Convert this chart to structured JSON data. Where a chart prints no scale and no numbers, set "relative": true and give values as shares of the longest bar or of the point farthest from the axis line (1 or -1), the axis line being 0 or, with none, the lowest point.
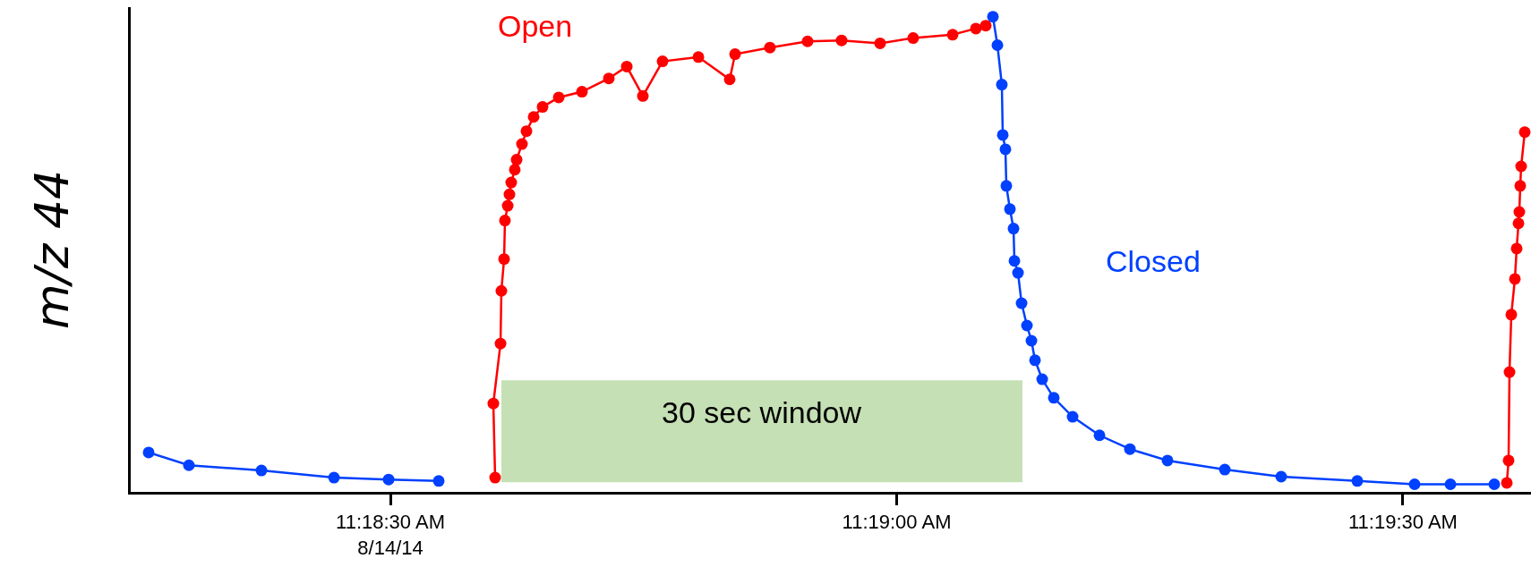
{
  "chart_data": {
    "type": "line",
    "relative": true,
    "ylabel": "m/z 44",
    "marker": "circle",
    "line_style": "solid",
    "legend": false,
    "grid": false,
    "tick_labels": "x",
    "xlim": [
      11.304059,
      11.327108
    ],
    "xticks": [
      {
        "value": 11.308333,
        "label": "11:18:30 AM\n8/14/14"
      },
      {
        "value": 11.316667,
        "label": "11:19:00 AM"
      },
      {
        "value": 11.325,
        "label": "11:19:30 AM"
      }
    ],
    "series": [
      {
        "name": "Closed",
        "color": "#0040ff",
        "x": [
          11.304354,
          11.305017,
          11.306211,
          11.307405,
          11.308304,
          11.309129,
          null,
          11.318251,
          11.318325,
          11.318398,
          11.318413,
          11.318457,
          11.318472,
          11.318531,
          11.31859,
          11.318605,
          11.318664,
          11.318723,
          11.318811,
          11.318885,
          11.318944,
          11.319062,
          11.319253,
          11.319563,
          11.320005,
          11.320506,
          11.321125,
          11.322068,
          11.322996,
          11.324249,
          11.325192,
          11.325782,
          11.326504
        ],
        "values": [
          0.083,
          0.056,
          0.045,
          0.03,
          0.026,
          0.023,
          null,
          1,
          0.94,
          0.857,
          0.751,
          0.721,
          0.644,
          0.595,
          0.554,
          0.486,
          0.461,
          0.397,
          0.35,
          0.318,
          0.277,
          0.237,
          0.198,
          0.158,
          0.119,
          0.09,
          0.066,
          0.047,
          0.032,
          0.023,
          0.016,
          0.016,
          0.016
        ]
      },
      {
        "name": "Open",
        "color": "#ff0000",
        "x": [
          11.310057,
          11.310028,
          11.310146,
          11.31016,
          11.310205,
          11.310219,
          11.310264,
          11.310293,
          11.310322,
          11.310381,
          11.310411,
          11.310499,
          11.310573,
          11.310691,
          11.310838,
          11.311104,
          11.311487,
          11.311929,
          11.312224,
          11.312489,
          11.312813,
          11.313403,
          11.313918,
          11.314007,
          11.314581,
          11.3152,
          11.31576,
          11.316394,
          11.316939,
          11.317588,
          11.317971,
          11.318133,
          null,
          11.32671,
          11.326739,
          11.326754,
          11.326784,
          11.326843,
          11.326872,
          11.326902,
          11.326916,
          11.326931,
          11.326946,
          11.327005
        ],
        "values": [
          0.03,
          0.186,
          0.312,
          0.423,
          0.49,
          0.571,
          0.602,
          0.626,
          0.651,
          0.678,
          0.699,
          0.732,
          0.759,
          0.789,
          0.81,
          0.83,
          0.842,
          0.87,
          0.895,
          0.833,
          0.906,
          0.915,
          0.868,
          0.921,
          0.935,
          0.948,
          0.95,
          0.944,
          0.955,
          0.962,
          0.975,
          0.981,
          null,
          0.019,
          0.066,
          0.252,
          0.373,
          0.448,
          0.512,
          0.565,
          0.589,
          0.644,
          0.685,
          0.757
        ]
      }
    ],
    "bands": [
      {
        "axis": "x",
        "from": 11.31016,
        "to": 11.318737,
        "label": "30 sec window",
        "color": "#c5e0b4"
      }
    ]
  }
}
